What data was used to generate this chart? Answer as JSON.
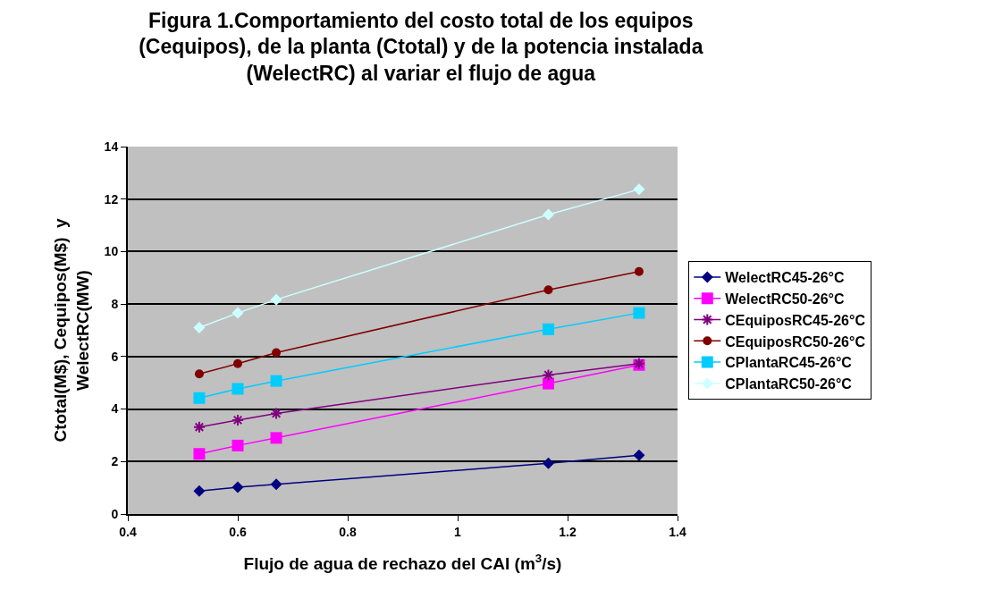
{
  "chart_data": {
    "type": "line",
    "title": "Figura 1.Comportamiento del costo total de los equipos\n(Cequipos), de la planta (Ctotal) y de la potencia instalada\n(WelectRC) al variar el flujo de agua",
    "xlabel": "Flujo de agua de rechazo del CAI (m$^{3}$/s)",
    "ylabel": "Ctotal(M$), Cequipos(M$)  y\nWelectRC(MW)",
    "x": [
      0.53,
      0.6,
      0.67,
      1.165,
      1.33
    ],
    "series": [
      {
        "name": "WelectRC45-26°C",
        "color": "#000080",
        "marker": "diamond",
        "values": [
          0.88,
          1.02,
          1.13,
          1.93,
          2.24
        ]
      },
      {
        "name": "WelectRC50-26°C",
        "color": "#ff00ff",
        "marker": "square",
        "values": [
          2.29,
          2.61,
          2.9,
          4.97,
          5.68
        ]
      },
      {
        "name": "CEquiposRC45-26°C",
        "color": "#800080",
        "marker": "cross",
        "values": [
          3.31,
          3.58,
          3.83,
          5.3,
          5.73
        ]
      },
      {
        "name": "CEquiposRC50-26°C",
        "color": "#800000",
        "marker": "circle",
        "values": [
          5.34,
          5.73,
          6.15,
          8.54,
          9.24
        ]
      },
      {
        "name": "CPlantaRC45-26°C",
        "color": "#00ccff",
        "marker": "square",
        "values": [
          4.42,
          4.77,
          5.07,
          7.04,
          7.66
        ]
      },
      {
        "name": "CPlantaRC50-26°C",
        "color": "#ccffff",
        "marker": "diamond",
        "values": [
          7.1,
          7.66,
          8.17,
          11.41,
          12.37
        ]
      }
    ],
    "xlim": [
      0.4,
      1.4
    ],
    "xticks": [
      0.4,
      0.6,
      0.8,
      1,
      1.2,
      1.4
    ],
    "ylim": [
      0,
      14
    ],
    "yticks": [
      0,
      2,
      4,
      6,
      8,
      10,
      12,
      14
    ],
    "grid": "y",
    "legend": "right",
    "line_style": "solid"
  }
}
